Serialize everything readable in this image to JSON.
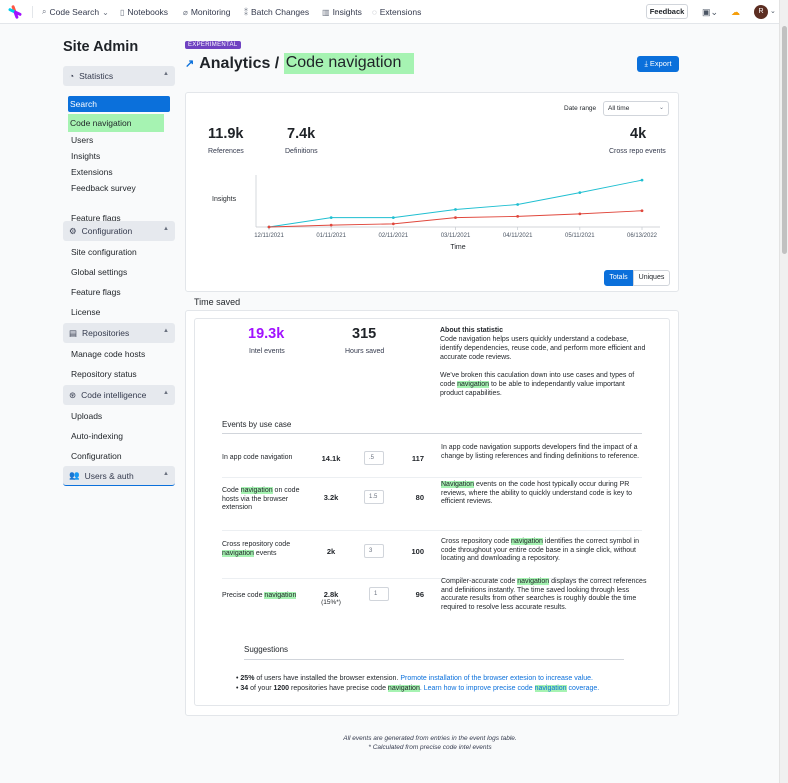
{
  "nav": {
    "items": [
      {
        "label": "Code Search",
        "icon": "search-icon",
        "chevron": true
      },
      {
        "label": "Notebooks",
        "icon": "notebook-icon"
      },
      {
        "label": "Monitoring",
        "icon": "monitoring-icon"
      },
      {
        "label": "Batch Changes",
        "icon": "batch-changes-icon"
      },
      {
        "label": "Insights",
        "icon": "insights-icon"
      },
      {
        "label": "Extensions",
        "icon": "extensions-icon"
      }
    ],
    "feedback": "Feedback",
    "avatar_initial": "R"
  },
  "sidebar": {
    "title": "Site Admin",
    "statistics": "Statistics",
    "stat_items": [
      "Search",
      "Code navigation",
      "Users",
      "Insights",
      "Extensions",
      "Feedback survey",
      "Feature flags"
    ],
    "configuration": "Configuration",
    "config_items": [
      "Site configuration",
      "Global settings",
      "Feature flags",
      "License"
    ],
    "repositories": "Repositories",
    "repo_items": [
      "Manage code hosts",
      "Repository status"
    ],
    "code_intel": "Code intelligence",
    "ci_items": [
      "Uploads",
      "Auto-indexing",
      "Configuration"
    ],
    "users_auth": "Users & auth"
  },
  "header": {
    "badge": "EXPERIMENTAL",
    "prefix": "Analytics / ",
    "title": "Code navigation",
    "export": "Export"
  },
  "analytics": {
    "date_range_label": "Date range",
    "date_range_value": "All time",
    "kpis": [
      {
        "value": "11.9k",
        "label": "References",
        "color": "#00a0c8"
      },
      {
        "value": "7.4k",
        "label": "Definitions",
        "color": "#e0473c"
      },
      {
        "value": "4k",
        "label": "Cross repo events",
        "color": "#1f2328"
      }
    ],
    "totals": "Totals",
    "uniques": "Uniques"
  },
  "chart_data": {
    "type": "line",
    "ylabel": "Insights",
    "xlabel": "Time",
    "categories": [
      "12/11/2021",
      "01/11/2021",
      "02/11/2021",
      "03/11/2021",
      "04/11/2021",
      "05/11/2021",
      "06/13/2022"
    ],
    "series": [
      {
        "name": "References",
        "color": "#1fbfd1",
        "values": [
          0,
          1500,
          1500,
          2800,
          3600,
          5500,
          7500
        ]
      },
      {
        "name": "Definitions",
        "color": "#e0473c",
        "values": [
          0,
          300,
          500,
          1500,
          1700,
          2100,
          2600
        ]
      }
    ],
    "ylim": [
      0,
      8000
    ],
    "grid": false
  },
  "time_saved": {
    "title": "Time saved",
    "intel_value": "19.3k",
    "intel_label": "Intel events",
    "hours_value": "315",
    "hours_label": "Hours saved",
    "about_title": "About this statistic",
    "about_p1": "Code navigation helps users quickly understand a codebase, identify dependencies, reuse code, and perform more efficient and accurate code reviews.",
    "about_p2_a": "We've broken this caculation down into use cases and types of code ",
    "about_p2_hl": "navigation",
    "about_p2_b": " to be able to independantly value important product capabilities.",
    "events_title": "Events by use case",
    "rows": [
      {
        "name_a": "In app code navigation",
        "name_hl": "",
        "name_b": "",
        "events": "14.1k",
        "sub": "",
        "input": ".5",
        "result": "117",
        "desc_a": "In app code navigation supports developers find the impact of a change by listing references and finding definitions to reference.",
        "desc_hl": "",
        "desc_b": ""
      },
      {
        "name_a": "Code ",
        "name_hl": "navigation",
        "name_b": " on code hosts via the browser extension",
        "events": "3.2k",
        "sub": "",
        "input": "1.5",
        "result": "80",
        "desc_a": "",
        "desc_hl": "Navigation",
        "desc_b": " events on the code host typically occur during PR reviews, where the ability to quickly understand code is key to efficient reviews."
      },
      {
        "name_a": "Cross repository code ",
        "name_hl": "navigation",
        "name_b": " events",
        "events": "2k",
        "sub": "",
        "input": "3",
        "result": "100",
        "desc_a": "Cross repository code ",
        "desc_hl": "navigation",
        "desc_b": " identifies the correct symbol in code throughout your entire code base in a single click, without locating and downloading a repository."
      },
      {
        "name_a": "Precise code ",
        "name_hl": "navigation",
        "name_b": "",
        "events": "2.8k",
        "sub": "(15%*)",
        "input": "1",
        "result": "96",
        "desc_a": "Compiler-accurate code ",
        "desc_hl": "navigation",
        "desc_b": " displays the correct references and definitions instantly. The time saved looking through less accurate results from other searches is roughly double the time required to resolve less accurate results."
      }
    ],
    "suggestions_title": "Suggestions",
    "s1_pct": "25%",
    "s1_text": " of users have installed the browser extension. ",
    "s1_link": "Promote installation of the browser extesion to increase value.",
    "s2_num": "34",
    "s2_text_a": " of your ",
    "s2_total": "1200",
    "s2_text_b": " repositories have precise code ",
    "s2_hl": "navigation",
    "s2_link_a": ". Learn how to improve precise code ",
    "s2_link_hl": "navigation",
    "s2_link_b": " coverage."
  },
  "footer": {
    "line1": "All events are generated from entries in the event logs table.",
    "line2": "* Calculated from precise code intel events"
  }
}
